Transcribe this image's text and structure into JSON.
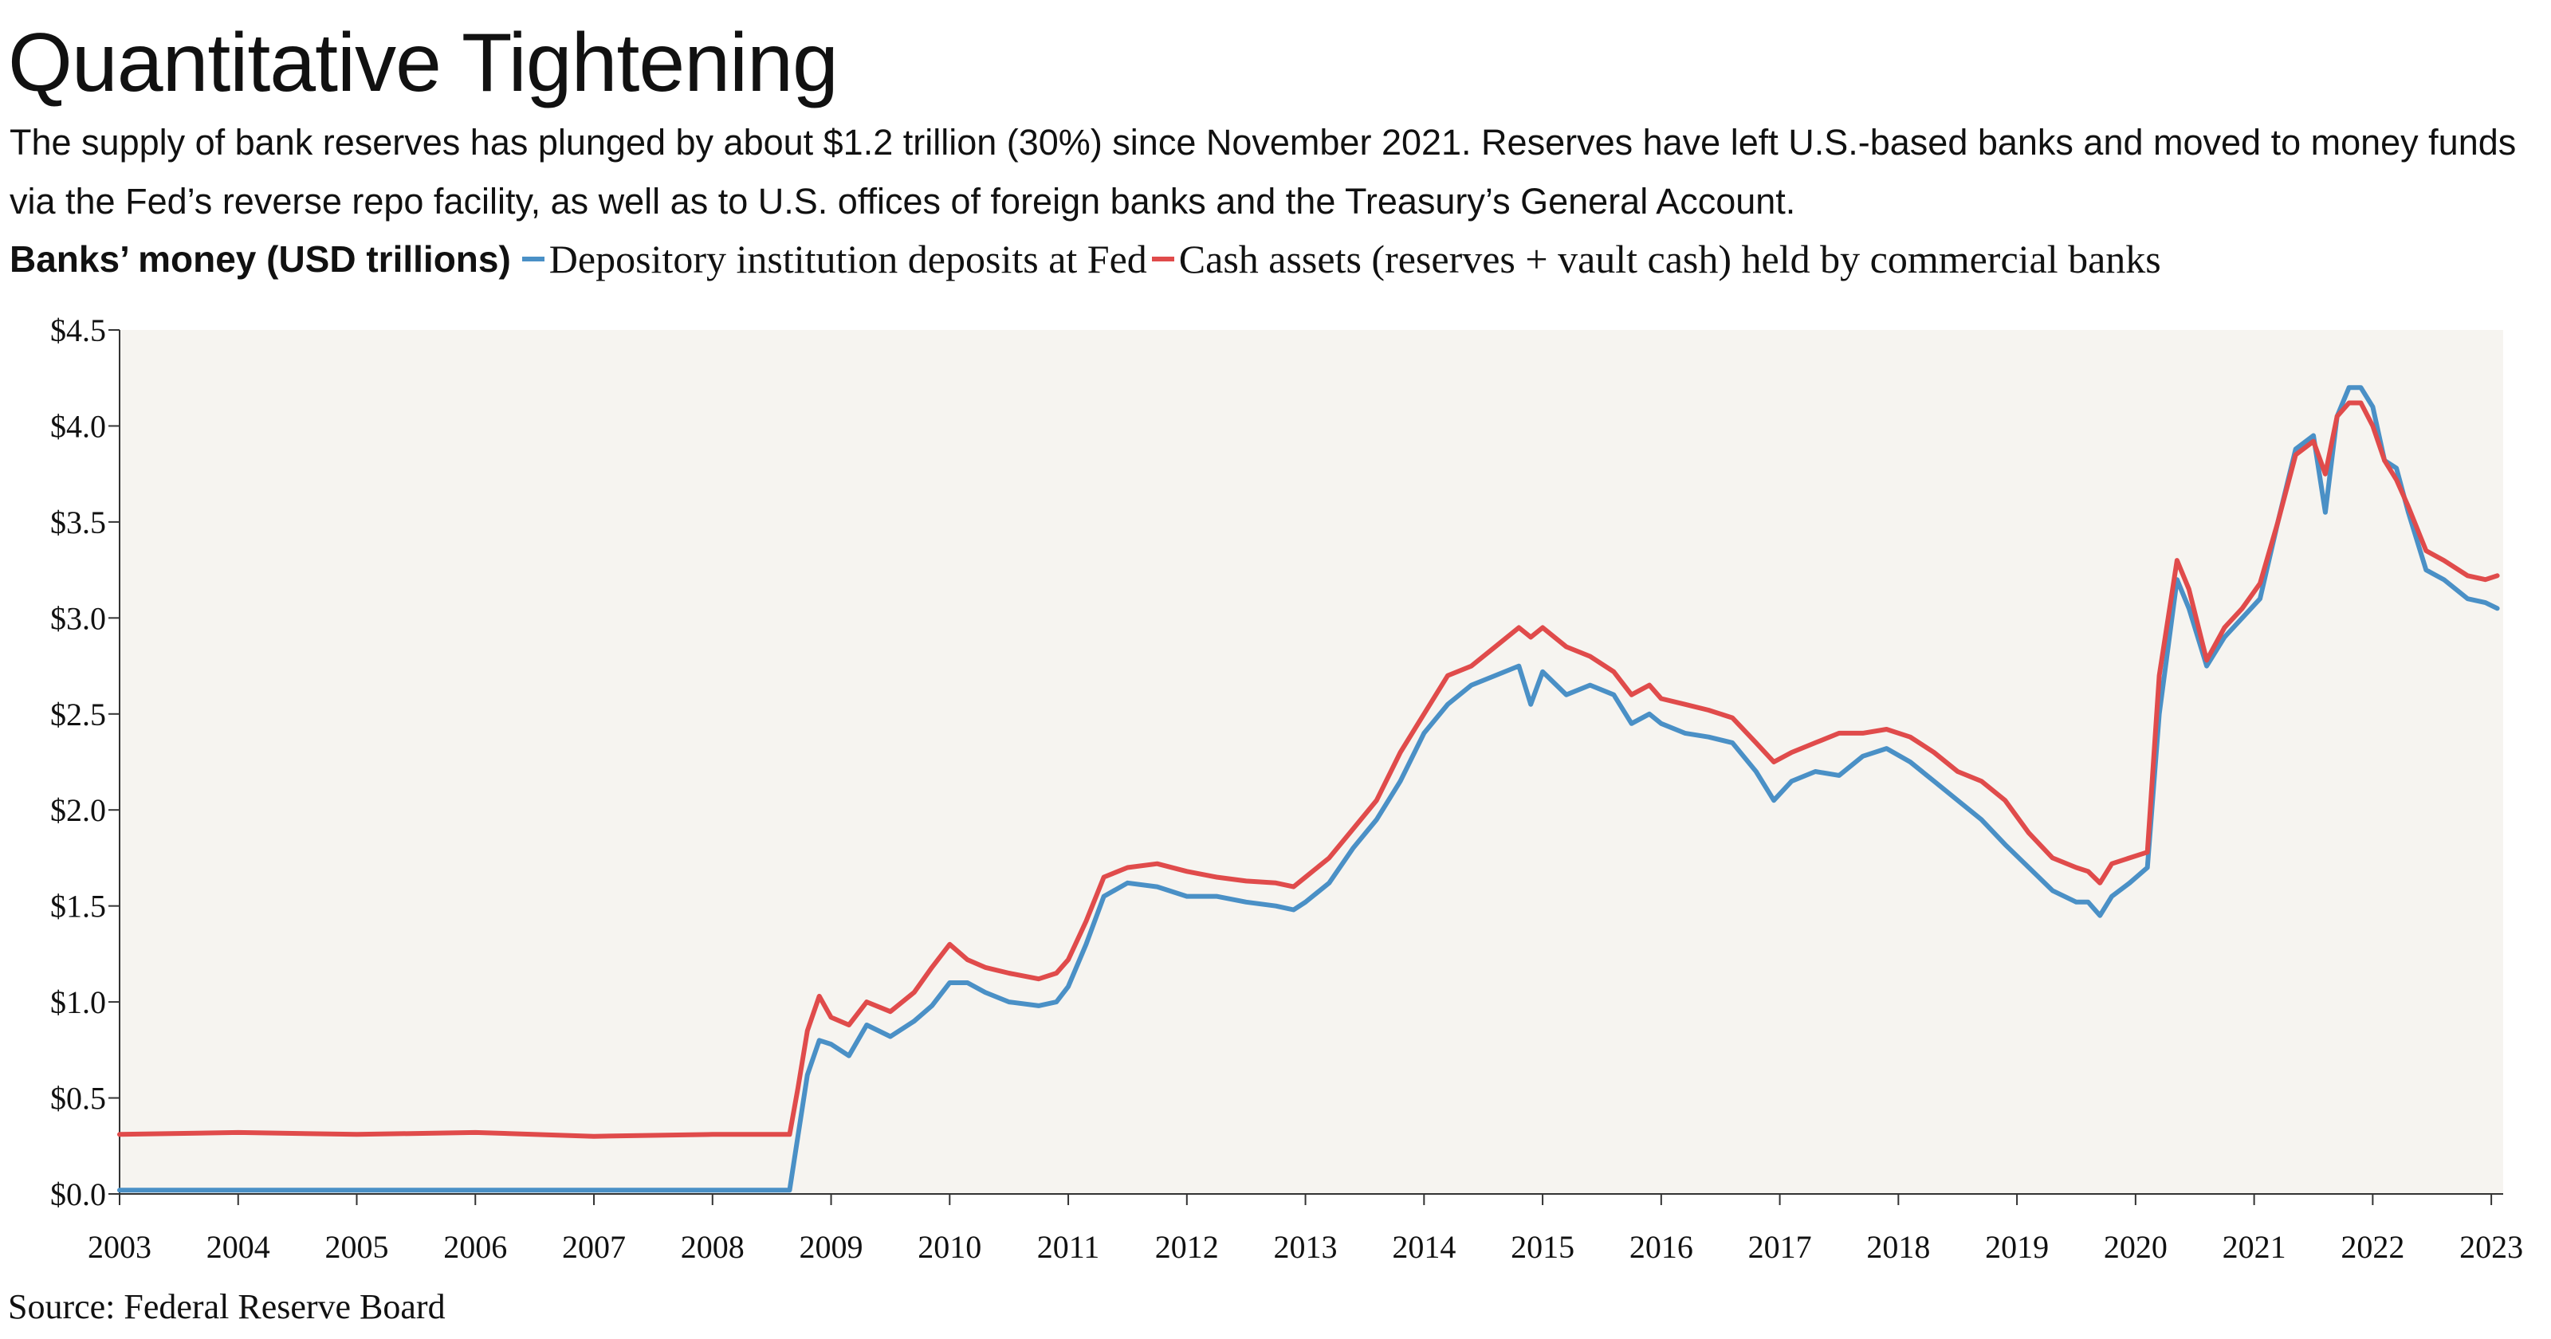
{
  "title": "Quantitative Tightening",
  "subtitle": "The supply of bank reserves has plunged by about $1.2 trillion (30%) since November 2021. Reserves have left U.S.-based banks and moved to money funds via the Fed’s reverse repo facility, as well as to U.S. offices of foreign banks and the Treasury’s General Account.",
  "legend_lead": "Banks’ money (USD trillions)",
  "source": "Source: Federal Reserve Board",
  "colors": {
    "blue": "#4a90c6",
    "red": "#e04b4b",
    "plot_bg": "#f6f4f0"
  },
  "chart_data": {
    "type": "line",
    "x_tick_labels": [
      "2003",
      "2004",
      "2005",
      "2006",
      "2007",
      "2008",
      "2009",
      "2010",
      "2011",
      "2012",
      "2013",
      "2014",
      "2015",
      "2016",
      "2017",
      "2018",
      "2019",
      "2020",
      "2021",
      "2022",
      "2023"
    ],
    "y_tick_labels": [
      "$0.0",
      "$0.5",
      "$1.0",
      "$1.5",
      "$2.0",
      "$2.5",
      "$3.0",
      "$3.5",
      "$4.0",
      "$4.5"
    ],
    "xlim": [
      2003,
      2023.1
    ],
    "ylim": [
      0,
      4.5
    ],
    "series": [
      {
        "name": "Depository institution deposits at Fed",
        "color": "#4a90c6",
        "points": [
          [
            2003.0,
            0.02
          ],
          [
            2004.0,
            0.02
          ],
          [
            2005.0,
            0.02
          ],
          [
            2006.0,
            0.02
          ],
          [
            2007.0,
            0.02
          ],
          [
            2008.0,
            0.02
          ],
          [
            2008.65,
            0.02
          ],
          [
            2008.72,
            0.3
          ],
          [
            2008.8,
            0.62
          ],
          [
            2008.9,
            0.8
          ],
          [
            2009.0,
            0.78
          ],
          [
            2009.15,
            0.72
          ],
          [
            2009.3,
            0.88
          ],
          [
            2009.5,
            0.82
          ],
          [
            2009.7,
            0.9
          ],
          [
            2009.85,
            0.98
          ],
          [
            2010.0,
            1.1
          ],
          [
            2010.15,
            1.1
          ],
          [
            2010.3,
            1.05
          ],
          [
            2010.5,
            1.0
          ],
          [
            2010.75,
            0.98
          ],
          [
            2010.9,
            1.0
          ],
          [
            2011.0,
            1.08
          ],
          [
            2011.15,
            1.3
          ],
          [
            2011.3,
            1.55
          ],
          [
            2011.5,
            1.62
          ],
          [
            2011.75,
            1.6
          ],
          [
            2012.0,
            1.55
          ],
          [
            2012.25,
            1.55
          ],
          [
            2012.5,
            1.52
          ],
          [
            2012.75,
            1.5
          ],
          [
            2012.9,
            1.48
          ],
          [
            2013.0,
            1.52
          ],
          [
            2013.2,
            1.62
          ],
          [
            2013.4,
            1.8
          ],
          [
            2013.6,
            1.95
          ],
          [
            2013.8,
            2.15
          ],
          [
            2014.0,
            2.4
          ],
          [
            2014.2,
            2.55
          ],
          [
            2014.4,
            2.65
          ],
          [
            2014.6,
            2.7
          ],
          [
            2014.8,
            2.75
          ],
          [
            2014.9,
            2.55
          ],
          [
            2015.0,
            2.72
          ],
          [
            2015.2,
            2.6
          ],
          [
            2015.4,
            2.65
          ],
          [
            2015.6,
            2.6
          ],
          [
            2015.75,
            2.45
          ],
          [
            2015.9,
            2.5
          ],
          [
            2016.0,
            2.45
          ],
          [
            2016.2,
            2.4
          ],
          [
            2016.4,
            2.38
          ],
          [
            2016.6,
            2.35
          ],
          [
            2016.8,
            2.2
          ],
          [
            2016.95,
            2.05
          ],
          [
            2017.1,
            2.15
          ],
          [
            2017.3,
            2.2
          ],
          [
            2017.5,
            2.18
          ],
          [
            2017.7,
            2.28
          ],
          [
            2017.9,
            2.32
          ],
          [
            2018.1,
            2.25
          ],
          [
            2018.3,
            2.15
          ],
          [
            2018.5,
            2.05
          ],
          [
            2018.7,
            1.95
          ],
          [
            2018.9,
            1.82
          ],
          [
            2019.1,
            1.7
          ],
          [
            2019.3,
            1.58
          ],
          [
            2019.5,
            1.52
          ],
          [
            2019.6,
            1.52
          ],
          [
            2019.7,
            1.45
          ],
          [
            2019.8,
            1.55
          ],
          [
            2019.95,
            1.62
          ],
          [
            2020.1,
            1.7
          ],
          [
            2020.2,
            2.5
          ],
          [
            2020.35,
            3.2
          ],
          [
            2020.45,
            3.05
          ],
          [
            2020.6,
            2.75
          ],
          [
            2020.75,
            2.9
          ],
          [
            2020.9,
            3.0
          ],
          [
            2021.05,
            3.1
          ],
          [
            2021.2,
            3.5
          ],
          [
            2021.35,
            3.88
          ],
          [
            2021.5,
            3.95
          ],
          [
            2021.6,
            3.55
          ],
          [
            2021.7,
            4.05
          ],
          [
            2021.8,
            4.2
          ],
          [
            2021.9,
            4.2
          ],
          [
            2022.0,
            4.1
          ],
          [
            2022.1,
            3.82
          ],
          [
            2022.2,
            3.78
          ],
          [
            2022.3,
            3.55
          ],
          [
            2022.45,
            3.25
          ],
          [
            2022.6,
            3.2
          ],
          [
            2022.8,
            3.1
          ],
          [
            2022.95,
            3.08
          ],
          [
            2023.05,
            3.05
          ]
        ]
      },
      {
        "name": "Cash assets (reserves + vault cash) held by commercial banks",
        "color": "#e04b4b",
        "points": [
          [
            2003.0,
            0.31
          ],
          [
            2004.0,
            0.32
          ],
          [
            2005.0,
            0.31
          ],
          [
            2006.0,
            0.32
          ],
          [
            2007.0,
            0.3
          ],
          [
            2008.0,
            0.31
          ],
          [
            2008.65,
            0.31
          ],
          [
            2008.72,
            0.55
          ],
          [
            2008.8,
            0.85
          ],
          [
            2008.9,
            1.03
          ],
          [
            2009.0,
            0.92
          ],
          [
            2009.15,
            0.88
          ],
          [
            2009.3,
            1.0
          ],
          [
            2009.5,
            0.95
          ],
          [
            2009.7,
            1.05
          ],
          [
            2009.85,
            1.18
          ],
          [
            2010.0,
            1.3
          ],
          [
            2010.15,
            1.22
          ],
          [
            2010.3,
            1.18
          ],
          [
            2010.5,
            1.15
          ],
          [
            2010.75,
            1.12
          ],
          [
            2010.9,
            1.15
          ],
          [
            2011.0,
            1.22
          ],
          [
            2011.15,
            1.42
          ],
          [
            2011.3,
            1.65
          ],
          [
            2011.5,
            1.7
          ],
          [
            2011.75,
            1.72
          ],
          [
            2012.0,
            1.68
          ],
          [
            2012.25,
            1.65
          ],
          [
            2012.5,
            1.63
          ],
          [
            2012.75,
            1.62
          ],
          [
            2012.9,
            1.6
          ],
          [
            2013.0,
            1.65
          ],
          [
            2013.2,
            1.75
          ],
          [
            2013.4,
            1.9
          ],
          [
            2013.6,
            2.05
          ],
          [
            2013.8,
            2.3
          ],
          [
            2014.0,
            2.5
          ],
          [
            2014.2,
            2.7
          ],
          [
            2014.4,
            2.75
          ],
          [
            2014.6,
            2.85
          ],
          [
            2014.8,
            2.95
          ],
          [
            2014.9,
            2.9
          ],
          [
            2015.0,
            2.95
          ],
          [
            2015.2,
            2.85
          ],
          [
            2015.4,
            2.8
          ],
          [
            2015.6,
            2.72
          ],
          [
            2015.75,
            2.6
          ],
          [
            2015.9,
            2.65
          ],
          [
            2016.0,
            2.58
          ],
          [
            2016.2,
            2.55
          ],
          [
            2016.4,
            2.52
          ],
          [
            2016.6,
            2.48
          ],
          [
            2016.8,
            2.35
          ],
          [
            2016.95,
            2.25
          ],
          [
            2017.1,
            2.3
          ],
          [
            2017.3,
            2.35
          ],
          [
            2017.5,
            2.4
          ],
          [
            2017.7,
            2.4
          ],
          [
            2017.9,
            2.42
          ],
          [
            2018.1,
            2.38
          ],
          [
            2018.3,
            2.3
          ],
          [
            2018.5,
            2.2
          ],
          [
            2018.7,
            2.15
          ],
          [
            2018.9,
            2.05
          ],
          [
            2019.1,
            1.88
          ],
          [
            2019.3,
            1.75
          ],
          [
            2019.5,
            1.7
          ],
          [
            2019.6,
            1.68
          ],
          [
            2019.7,
            1.62
          ],
          [
            2019.8,
            1.72
          ],
          [
            2019.95,
            1.75
          ],
          [
            2020.1,
            1.78
          ],
          [
            2020.2,
            2.7
          ],
          [
            2020.35,
            3.3
          ],
          [
            2020.45,
            3.15
          ],
          [
            2020.6,
            2.78
          ],
          [
            2020.75,
            2.95
          ],
          [
            2020.9,
            3.05
          ],
          [
            2021.05,
            3.18
          ],
          [
            2021.2,
            3.5
          ],
          [
            2021.35,
            3.85
          ],
          [
            2021.5,
            3.92
          ],
          [
            2021.6,
            3.75
          ],
          [
            2021.7,
            4.05
          ],
          [
            2021.8,
            4.12
          ],
          [
            2021.9,
            4.12
          ],
          [
            2022.0,
            4.0
          ],
          [
            2022.1,
            3.82
          ],
          [
            2022.2,
            3.72
          ],
          [
            2022.3,
            3.58
          ],
          [
            2022.45,
            3.35
          ],
          [
            2022.6,
            3.3
          ],
          [
            2022.8,
            3.22
          ],
          [
            2022.95,
            3.2
          ],
          [
            2023.05,
            3.22
          ]
        ]
      }
    ]
  }
}
